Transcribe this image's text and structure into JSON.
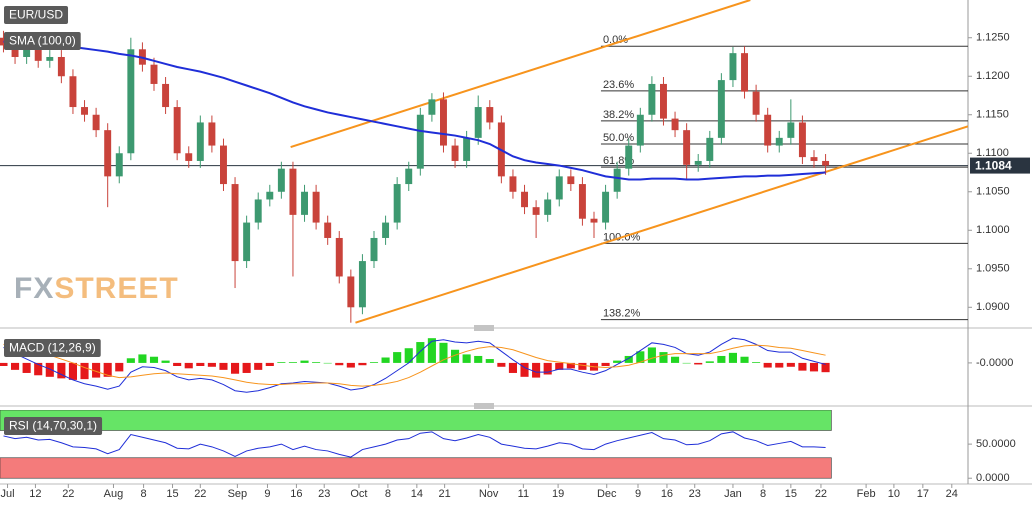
{
  "chart_data": [
    {
      "type": "candlestick",
      "title": "EUR/USD",
      "watermark": [
        "FX",
        "STREET"
      ],
      "up_color": "#3d9970",
      "down_color": "#c9433b",
      "candles": {
        "open": [
          1.125,
          1.124,
          1.1225,
          1.1235,
          1.122,
          1.1225,
          1.12,
          1.116,
          1.115,
          1.113,
          1.107,
          1.11,
          1.1235,
          1.1215,
          1.119,
          1.116,
          1.11,
          1.109,
          1.114,
          1.111,
          1.106,
          1.096,
          1.101,
          1.104,
          1.105,
          1.108,
          1.102,
          1.105,
          1.101,
          1.099,
          1.094,
          1.09,
          1.096,
          1.099,
          1.101,
          1.106,
          1.108,
          1.115,
          1.117,
          1.111,
          1.109,
          1.112,
          1.116,
          1.114,
          1.107,
          1.105,
          1.103,
          1.102,
          1.104,
          1.107,
          1.106,
          1.1015,
          1.101,
          1.105,
          1.108,
          1.111,
          1.115,
          1.119,
          1.1145,
          1.113,
          1.1085,
          1.109,
          1.112,
          1.1195,
          1.123,
          1.118,
          1.115,
          1.111,
          1.112,
          1.114,
          1.1095,
          1.109
        ],
        "high": [
          1.1259,
          1.1249,
          1.1244,
          1.1244,
          1.1234,
          1.1234,
          1.1209,
          1.1169,
          1.1159,
          1.1139,
          1.1109,
          1.125,
          1.1244,
          1.1224,
          1.1199,
          1.1169,
          1.1109,
          1.1149,
          1.1149,
          1.1119,
          1.1069,
          1.1019,
          1.1049,
          1.1059,
          1.1089,
          1.1089,
          1.1059,
          1.1059,
          1.1019,
          1.0999,
          1.0949,
          1.0969,
          1.0999,
          1.1019,
          1.1069,
          1.1089,
          1.1159,
          1.1178,
          1.1179,
          1.1119,
          1.1129,
          1.1175,
          1.1169,
          1.1149,
          1.1079,
          1.1059,
          1.1039,
          1.1049,
          1.1079,
          1.1079,
          1.1069,
          1.1024,
          1.1059,
          1.1089,
          1.1119,
          1.1159,
          1.12,
          1.1199,
          1.1154,
          1.1139,
          1.1099,
          1.1129,
          1.1204,
          1.1238,
          1.1239,
          1.1189,
          1.1159,
          1.1129,
          1.117,
          1.1149,
          1.1104,
          1.1099
        ],
        "low": [
          1.1231,
          1.1216,
          1.1216,
          1.1211,
          1.1211,
          1.1191,
          1.1151,
          1.1141,
          1.1121,
          1.103,
          1.1061,
          1.1091,
          1.1206,
          1.1181,
          1.1151,
          1.1091,
          1.1081,
          1.1081,
          1.1101,
          1.1051,
          1.0925,
          1.0951,
          1.1001,
          1.1031,
          1.1041,
          1.094,
          1.1011,
          1.1001,
          1.0981,
          1.0931,
          1.088,
          1.0891,
          1.0951,
          1.0981,
          1.1001,
          1.1051,
          1.1071,
          1.1141,
          1.1101,
          1.1081,
          1.1081,
          1.1111,
          1.1131,
          1.1061,
          1.1041,
          1.1021,
          1.099,
          1.1011,
          1.1031,
          1.1051,
          1.1006,
          1.099,
          1.1001,
          1.1041,
          1.1071,
          1.1101,
          1.1141,
          1.1136,
          1.1121,
          1.1066,
          1.1076,
          1.1081,
          1.1111,
          1.1186,
          1.1171,
          1.1141,
          1.1101,
          1.1101,
          1.1111,
          1.1086,
          1.1081,
          1.1072
        ],
        "close": [
          1.124,
          1.1225,
          1.1235,
          1.122,
          1.1225,
          1.12,
          1.116,
          1.115,
          1.113,
          1.107,
          1.11,
          1.1235,
          1.1215,
          1.119,
          1.116,
          1.11,
          1.109,
          1.114,
          1.111,
          1.106,
          1.096,
          1.101,
          1.104,
          1.105,
          1.108,
          1.102,
          1.105,
          1.101,
          1.099,
          1.094,
          1.09,
          1.096,
          1.099,
          1.101,
          1.106,
          1.108,
          1.115,
          1.117,
          1.111,
          1.109,
          1.112,
          1.116,
          1.114,
          1.107,
          1.105,
          1.103,
          1.102,
          1.104,
          1.107,
          1.106,
          1.1015,
          1.101,
          1.105,
          1.108,
          1.111,
          1.115,
          1.119,
          1.1145,
          1.113,
          1.1085,
          1.109,
          1.112,
          1.1195,
          1.123,
          1.118,
          1.115,
          1.111,
          1.112,
          1.114,
          1.1095,
          1.109,
          1.1084
        ]
      },
      "series": [
        {
          "name": "SMA (100,0)",
          "color": "#1f2ed8",
          "values": [
            1.1245,
            1.1244,
            1.1243,
            1.1242,
            1.1241,
            1.124,
            1.1238,
            1.1236,
            1.1234,
            1.1232,
            1.1229,
            1.1227,
            1.1224,
            1.122,
            1.1216,
            1.1212,
            1.1209,
            1.1206,
            1.1202,
            1.1198,
            1.1193,
            1.1188,
            1.1183,
            1.1178,
            1.1172,
            1.1166,
            1.1161,
            1.1157,
            1.1153,
            1.115,
            1.1147,
            1.1144,
            1.1141,
            1.1138,
            1.1135,
            1.1132,
            1.1129,
            1.1127,
            1.1125,
            1.1123,
            1.112,
            1.1117,
            1.1112,
            1.1104,
            1.1096,
            1.1091,
            1.1088,
            1.1086,
            1.1084,
            1.1081,
            1.1078,
            1.1074,
            1.107,
            1.1068,
            1.1066,
            1.1066,
            1.1067,
            1.1067,
            1.1067,
            1.1066,
            1.1066,
            1.1067,
            1.1068,
            1.1069,
            1.107,
            1.107,
            1.1071,
            1.1071,
            1.1072,
            1.1073,
            1.1074,
            1.1075
          ]
        }
      ],
      "trendlines": [
        {
          "color": "#f7941d",
          "x": [
            24.8,
            64.5
          ],
          "y": [
            1.1108,
            1.1299
          ]
        },
        {
          "color": "#f7941d",
          "x": [
            30.4,
            83.3
          ],
          "y": [
            1.088,
            1.1135
          ]
        }
      ],
      "fib_x_start": 51.6,
      "fib_levels": [
        {
          "label": "0.0%",
          "value": 1.1239
        },
        {
          "label": "23.6%",
          "value": 1.1181
        },
        {
          "label": "38.2%",
          "value": 1.1142
        },
        {
          "label": "50.0%",
          "value": 1.1112
        },
        {
          "label": "61.8%",
          "value": 1.1082
        },
        {
          "label": "100.0%",
          "value": 1.0983
        },
        {
          "label": "138.2%",
          "value": 1.0884
        }
      ],
      "last_price": 1.1084,
      "ylim": [
        1.0877,
        1.1299
      ],
      "yticks": [
        {
          "value": 1.125,
          "label": "1.1250"
        },
        {
          "value": 1.12,
          "label": "1.1200"
        },
        {
          "value": 1.115,
          "label": "1.1150"
        },
        {
          "value": 1.11,
          "label": "1.1100"
        },
        {
          "value": 1.105,
          "label": "1.1050"
        },
        {
          "value": 1.1,
          "label": "1.1000"
        },
        {
          "value": 1.095,
          "label": "1.0950"
        },
        {
          "value": 1.09,
          "label": "1.0900"
        }
      ],
      "xlim": [
        -0.3,
        83.3
      ],
      "xticks": [
        {
          "value": 0.35,
          "label": "Jul"
        },
        {
          "value": 2.76,
          "label": "12"
        },
        {
          "value": 5.6,
          "label": "22"
        },
        {
          "value": 9.5,
          "label": "Aug"
        },
        {
          "value": 12.1,
          "label": "8"
        },
        {
          "value": 14.6,
          "label": "15"
        },
        {
          "value": 17.0,
          "label": "22"
        },
        {
          "value": 20.2,
          "label": "Sep"
        },
        {
          "value": 22.8,
          "label": "9"
        },
        {
          "value": 25.3,
          "label": "16"
        },
        {
          "value": 27.7,
          "label": "23"
        },
        {
          "value": 30.7,
          "label": "Oct"
        },
        {
          "value": 33.2,
          "label": "8"
        },
        {
          "value": 35.7,
          "label": "14"
        },
        {
          "value": 38.1,
          "label": "21"
        },
        {
          "value": 41.9,
          "label": "Nov"
        },
        {
          "value": 44.9,
          "label": "11"
        },
        {
          "value": 47.9,
          "label": "19"
        },
        {
          "value": 52.1,
          "label": "Dec"
        },
        {
          "value": 54.8,
          "label": "9"
        },
        {
          "value": 57.3,
          "label": "16"
        },
        {
          "value": 59.7,
          "label": "23"
        },
        {
          "value": 63.0,
          "label": "Jan"
        },
        {
          "value": 65.6,
          "label": "8"
        },
        {
          "value": 68.0,
          "label": "15"
        },
        {
          "value": 70.6,
          "label": "22"
        },
        {
          "value": 74.5,
          "label": "Feb"
        },
        {
          "value": 76.9,
          "label": "10"
        },
        {
          "value": 79.4,
          "label": "17"
        },
        {
          "value": 81.9,
          "label": "24"
        }
      ]
    },
    {
      "type": "macd",
      "title": "MACD (12,26,9)",
      "histogram": {
        "up_color": "#22d622",
        "down_color": "#e5181b",
        "values": [
          -0.0004,
          -0.0009,
          -0.0013,
          -0.0016,
          -0.0018,
          -0.002,
          -0.0022,
          -0.0021,
          -0.0019,
          -0.0018,
          -0.0011,
          0.0006,
          0.0011,
          0.0008,
          0.0003,
          -0.0004,
          -0.0007,
          -0.0004,
          -0.0005,
          -0.0009,
          -0.0014,
          -0.0013,
          -0.0009,
          -0.0004,
          0.0001,
          0.0001,
          0.0003,
          0.0001,
          0.0,
          -0.0003,
          -0.0006,
          -0.0003,
          0.0001,
          0.0007,
          0.0014,
          0.0019,
          0.0027,
          0.0032,
          0.0026,
          0.0017,
          0.0011,
          0.0009,
          0.0005,
          -0.0005,
          -0.0013,
          -0.0018,
          -0.0019,
          -0.0015,
          -0.0009,
          -0.0007,
          -0.0009,
          -0.001,
          -0.0004,
          0.0003,
          0.0009,
          0.0015,
          0.002,
          0.0014,
          0.0008,
          0.0,
          -0.0002,
          0.0002,
          0.0009,
          0.0013,
          0.0008,
          0.0001,
          -0.0006,
          -0.0006,
          -0.0005,
          -0.001,
          -0.0011,
          -0.0012
        ]
      },
      "series": [
        {
          "color": "#1f2ed8",
          "values": [
            0.002,
            0.0012,
            0.0005,
            -0.0002,
            -0.0008,
            -0.0015,
            -0.0022,
            -0.0027,
            -0.003,
            -0.0034,
            -0.003,
            -0.0012,
            -0.0005,
            -0.0006,
            -0.001,
            -0.0018,
            -0.0022,
            -0.002,
            -0.0022,
            -0.0028,
            -0.0036,
            -0.0038,
            -0.0036,
            -0.0032,
            -0.0027,
            -0.0026,
            -0.0024,
            -0.0025,
            -0.0026,
            -0.003,
            -0.0035,
            -0.0033,
            -0.0028,
            -0.002,
            -0.001,
            0.0,
            0.0015,
            0.0028,
            0.003,
            0.0027,
            0.0026,
            0.0028,
            0.0026,
            0.0015,
            0.0004,
            -0.0006,
            -0.0012,
            -0.0012,
            -0.0008,
            -0.0008,
            -0.0012,
            -0.0015,
            -0.001,
            -0.0002,
            0.0006,
            0.0016,
            0.0026,
            0.0024,
            0.002,
            0.0012,
            0.001,
            0.0014,
            0.0024,
            0.0032,
            0.003,
            0.0024,
            0.0016,
            0.0014,
            0.0014,
            0.0006,
            0.0002,
            -0.0002
          ]
        },
        {
          "color": "#f7941d",
          "values": [
            0.0024,
            0.0021,
            0.0018,
            0.0014,
            0.001,
            0.0005,
            0.0,
            -0.0006,
            -0.0011,
            -0.0016,
            -0.0019,
            -0.0018,
            -0.0016,
            -0.0014,
            -0.0013,
            -0.0014,
            -0.0015,
            -0.0016,
            -0.0017,
            -0.0019,
            -0.0022,
            -0.0025,
            -0.0027,
            -0.0028,
            -0.0028,
            -0.0027,
            -0.0027,
            -0.0026,
            -0.0026,
            -0.0027,
            -0.0029,
            -0.003,
            -0.0029,
            -0.0027,
            -0.0024,
            -0.0019,
            -0.0012,
            -0.0004,
            0.0004,
            0.001,
            0.0015,
            0.0019,
            0.0021,
            0.002,
            0.0017,
            0.0012,
            0.0007,
            0.0003,
            0.0001,
            -0.0001,
            -0.0003,
            -0.0005,
            -0.0006,
            -0.0005,
            -0.0003,
            0.0001,
            0.0006,
            0.001,
            0.0012,
            0.0012,
            0.0012,
            0.0012,
            0.0015,
            0.0019,
            0.0022,
            0.0023,
            0.0022,
            0.002,
            0.0019,
            0.0016,
            0.0013,
            0.001
          ]
        }
      ],
      "ylim": [
        -0.0048,
        0.004
      ],
      "yticks": [
        {
          "value": 0,
          "label": "-0.0000"
        }
      ]
    },
    {
      "type": "rsi",
      "title": "RSI (14,70,30,1)",
      "color": "#1f2ed8",
      "values": [
        62,
        58,
        60,
        56,
        57,
        52,
        46,
        45,
        43,
        36,
        42,
        64,
        60,
        56,
        52,
        44,
        43,
        50,
        46,
        40,
        32,
        40,
        44,
        46,
        50,
        42,
        47,
        42,
        40,
        35,
        31,
        42,
        46,
        50,
        56,
        58,
        66,
        68,
        58,
        55,
        59,
        64,
        60,
        50,
        47,
        44,
        43,
        47,
        52,
        50,
        43,
        42,
        50,
        55,
        59,
        63,
        67,
        58,
        56,
        49,
        50,
        55,
        65,
        68,
        59,
        55,
        48,
        51,
        54,
        46,
        46,
        45
      ],
      "zones": [
        {
          "from": 70,
          "to": 100,
          "color": "#66e466"
        },
        {
          "from": 0,
          "to": 30,
          "color": "#f47b7b"
        }
      ],
      "ylim": [
        -7,
        100
      ],
      "yticks": [
        {
          "value": 50,
          "label": "50.0000"
        },
        {
          "value": 0,
          "label": "0.0000"
        }
      ]
    }
  ]
}
